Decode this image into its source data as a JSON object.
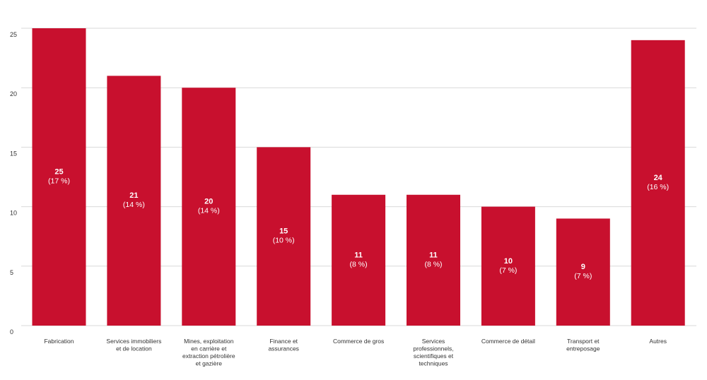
{
  "chart_data": {
    "type": "bar",
    "categories": [
      [
        "Fabrication"
      ],
      [
        "Services immobiliers",
        "et de location"
      ],
      [
        "Mines, exploitation",
        "en carrière et",
        "extraction pétrolière",
        "et gazière"
      ],
      [
        "Finance et",
        "assurances"
      ],
      [
        "Commerce de gros"
      ],
      [
        "Services",
        "professionnels,",
        "scientifiques et",
        "techniques"
      ],
      [
        "Commerce de détail"
      ],
      [
        "Transport et",
        "entreposage"
      ],
      [
        "Autres"
      ]
    ],
    "values": [
      25,
      21,
      20,
      15,
      11,
      11,
      10,
      9,
      24
    ],
    "percent_labels": [
      "(17 %)",
      "(14 %)",
      "(14 %)",
      "(10 %)",
      "(8 %)",
      "(8 %)",
      "(7 %)",
      "(7 %)",
      "(16 %)"
    ],
    "value_labels": [
      "25",
      "21",
      "20",
      "15",
      "11",
      "11",
      "10",
      "9",
      "24"
    ],
    "ylim": [
      0,
      25
    ],
    "yticks": [
      "0",
      "5",
      "10",
      "15",
      "20",
      "25"
    ],
    "grid": true,
    "bar_color": "#c8102e",
    "title": "",
    "xlabel": "",
    "ylabel": ""
  }
}
